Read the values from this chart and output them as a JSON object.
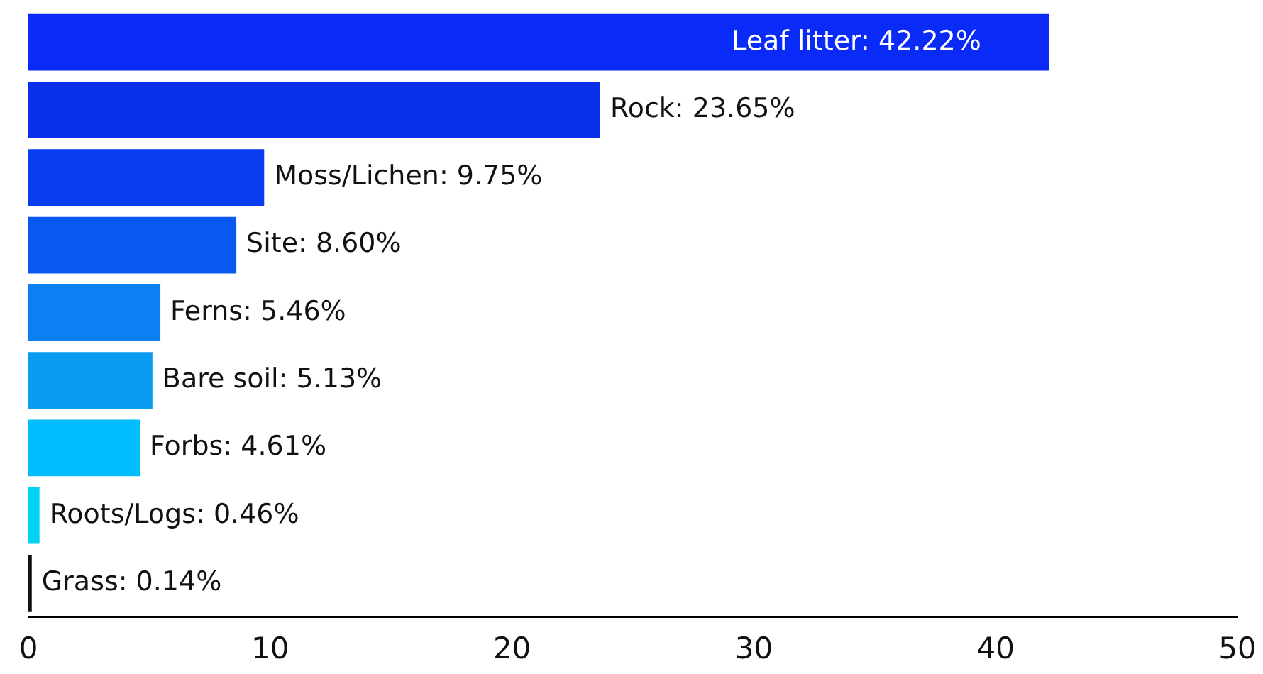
{
  "chart_data": {
    "type": "bar",
    "orientation": "horizontal",
    "categories": [
      null,
      null,
      null,
      null,
      null,
      null,
      null,
      null,
      null
    ],
    "values": [
      42.22,
      23.65,
      9.75,
      8.6,
      5.46,
      5.13,
      4.61,
      0.46,
      0.14
    ],
    "colors": [
      "#0a2af8",
      "#0a30ee",
      "#0a3cf0",
      "#0a58f2",
      "#0a80f2",
      "#0a9cf2",
      "#00bcfc",
      "#00d4f0",
      "#111111"
    ],
    "value_labels": [
      "Leaf litter: 42.22%",
      "Rock: 23.65%",
      "Moss/Lichen: 9.75%",
      "Site: 8.60%",
      "Ferns: 5.46%",
      "Bare soil: 5.13%",
      "Forbs: 4.61%",
      "Roots/Logs: 0.46%",
      "Grass: 0.14%"
    ],
    "xlim": [
      0,
      50
    ],
    "xticks": [
      0,
      10,
      20,
      30,
      40,
      50
    ],
    "grid": false,
    "legend": false,
    "tick_labels": "x"
  }
}
